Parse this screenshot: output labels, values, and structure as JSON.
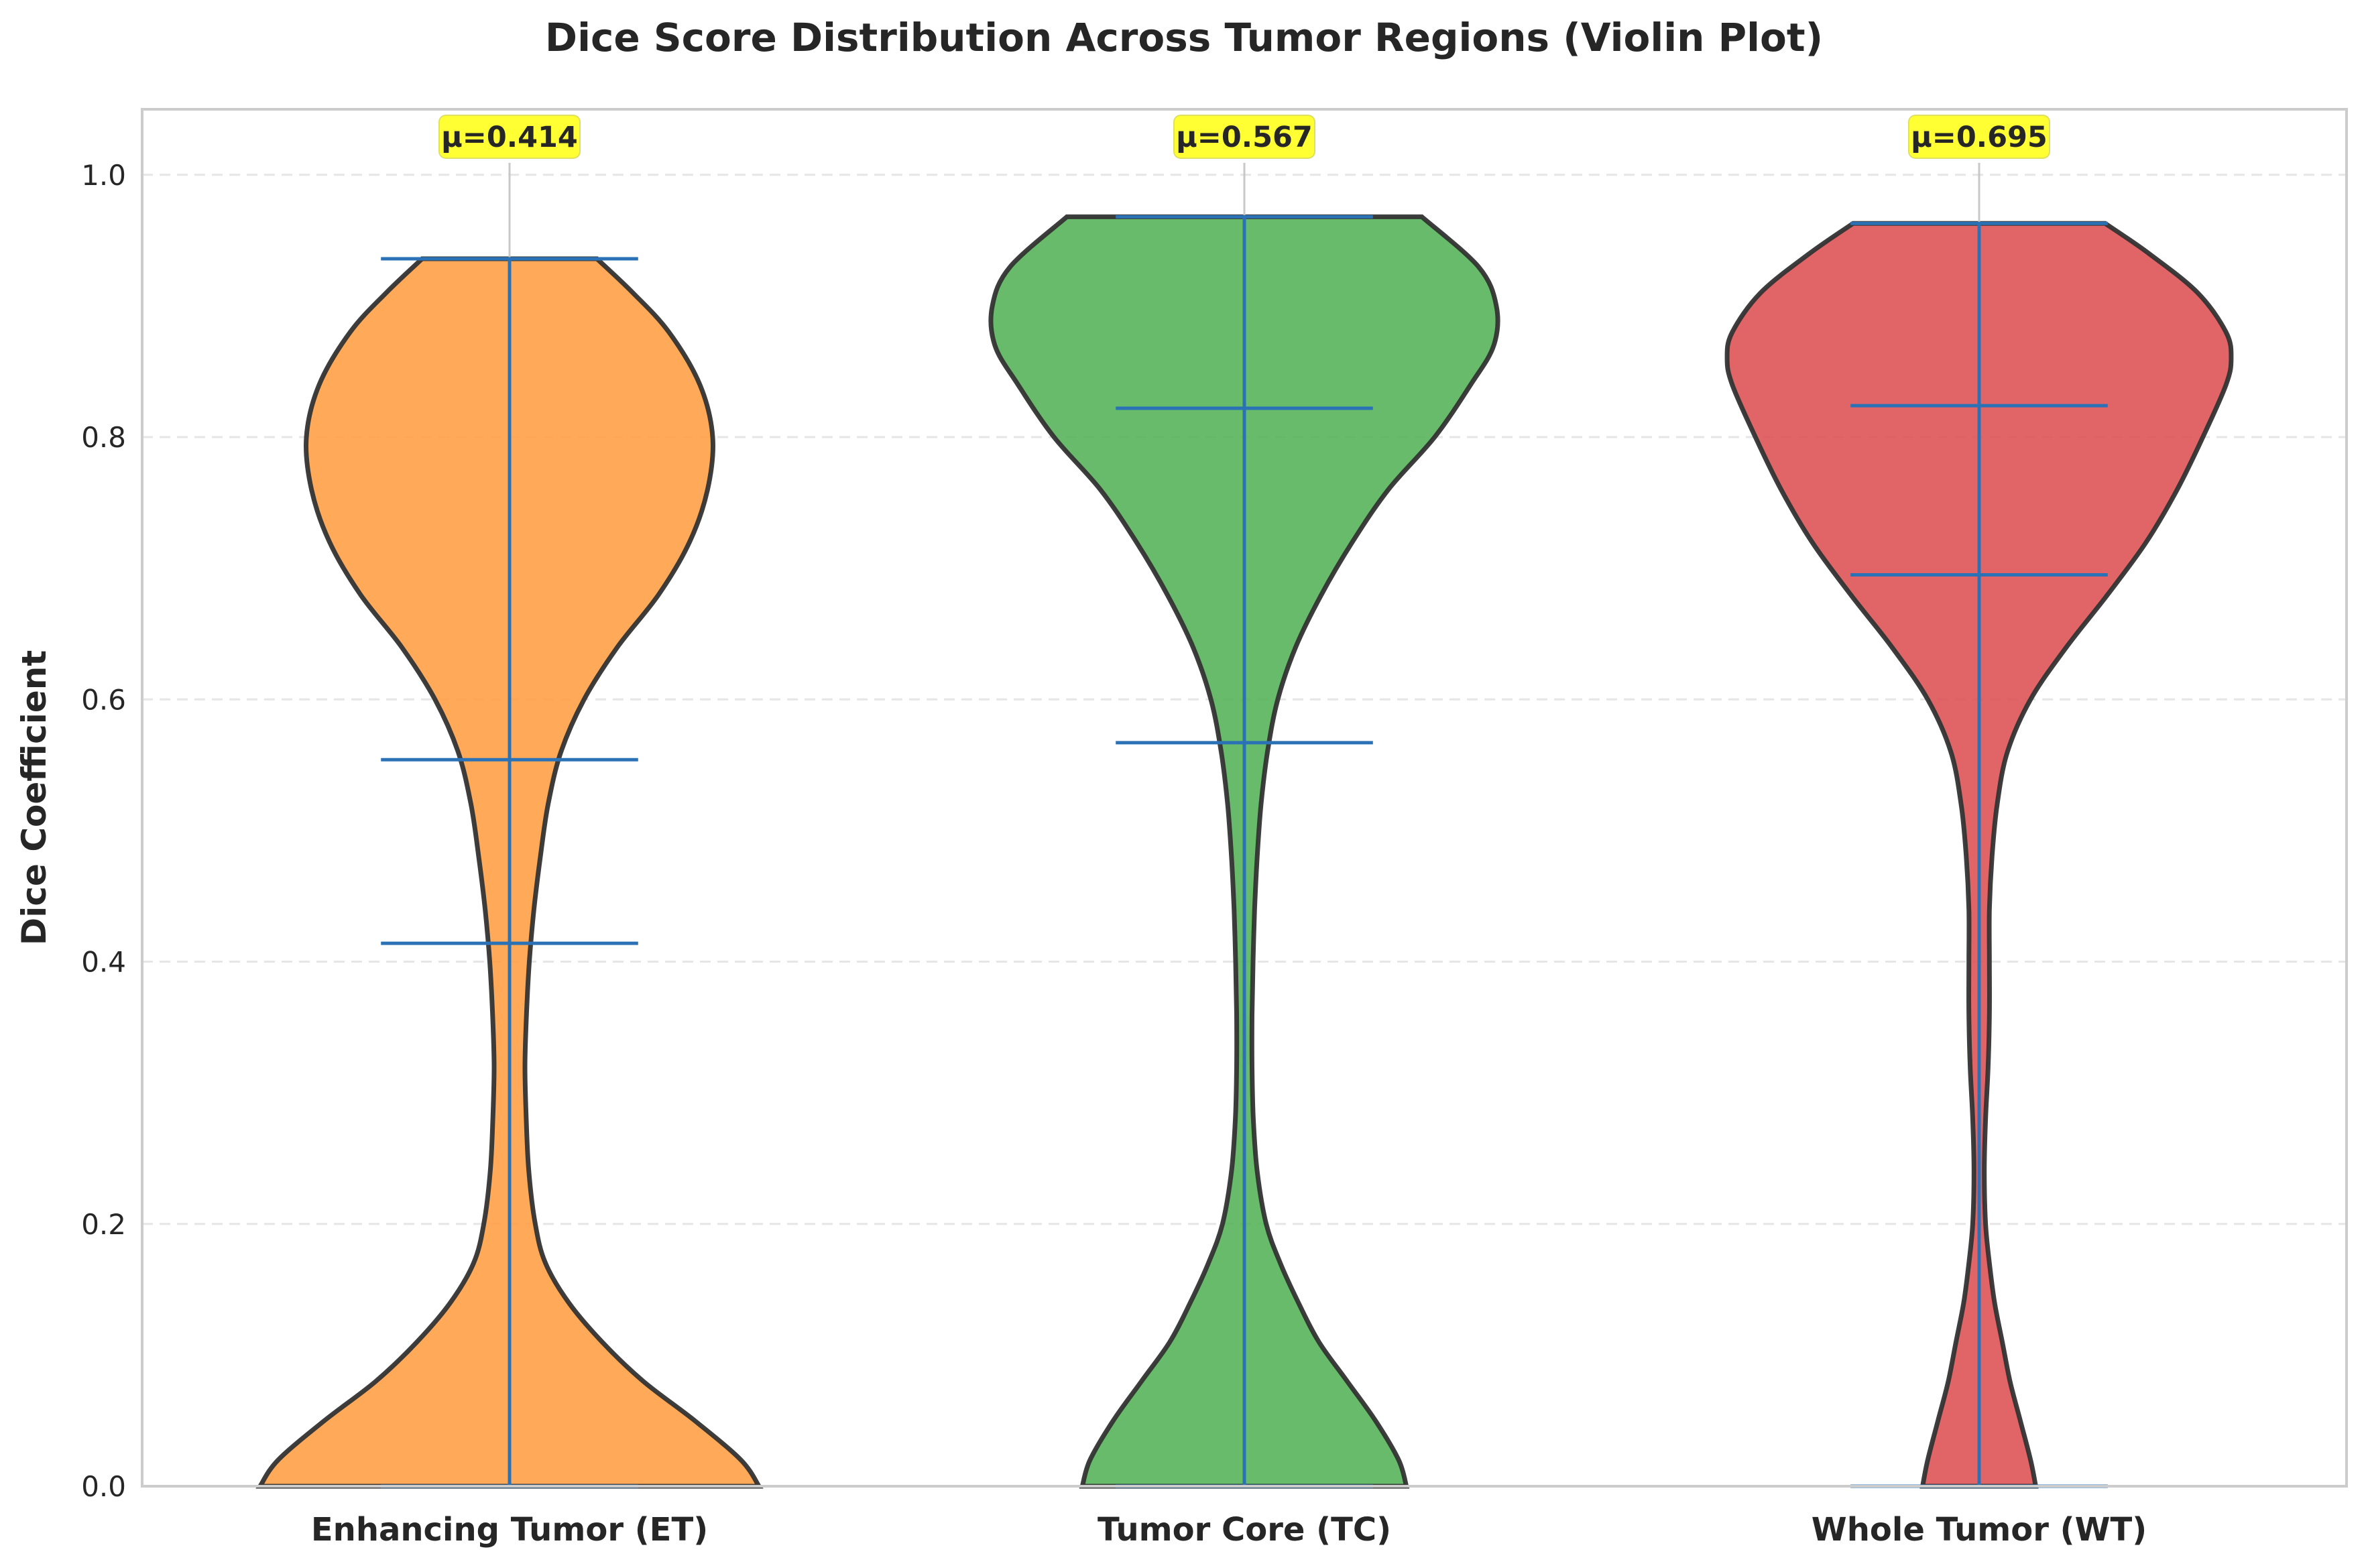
{
  "chart_data": {
    "type": "violin",
    "title": "Dice Score Distribution Across Tumor Regions (Violin Plot)",
    "xlabel": "",
    "ylabel": "Dice Coefficient",
    "ylim": [
      0.0,
      1.05
    ],
    "yticks": [
      "0.0",
      "0.2",
      "0.4",
      "0.6",
      "0.8",
      "1.0"
    ],
    "grid": "y-dashed",
    "categories": [
      "Enhancing Tumor (ET)",
      "Tumor Core (TC)",
      "Whole Tumor (WT)"
    ],
    "colors": [
      "#ff9a3c",
      "#4caf50",
      "#dc4a4c"
    ],
    "series": [
      {
        "category": "Enhancing Tumor (ET)",
        "min": 0.0,
        "max": 0.936,
        "mean": 0.414,
        "median": 0.554,
        "mean_label": "μ=0.414",
        "density_y": [
          0.0,
          0.02,
          0.05,
          0.08,
          0.11,
          0.14,
          0.17,
          0.2,
          0.24,
          0.28,
          0.32,
          0.36,
          0.4,
          0.44,
          0.48,
          0.52,
          0.56,
          0.6,
          0.64,
          0.68,
          0.72,
          0.76,
          0.8,
          0.84,
          0.88,
          0.91,
          0.936
        ],
        "density_w": [
          0.97,
          0.9,
          0.72,
          0.52,
          0.36,
          0.23,
          0.14,
          0.1,
          0.075,
          0.065,
          0.06,
          0.066,
          0.077,
          0.095,
          0.12,
          0.15,
          0.2,
          0.29,
          0.42,
          0.58,
          0.7,
          0.77,
          0.79,
          0.74,
          0.62,
          0.48,
          0.34
        ]
      },
      {
        "category": "Tumor Core (TC)",
        "min": 0.0,
        "max": 0.968,
        "mean": 0.567,
        "median": 0.822,
        "mean_label": "μ=0.567",
        "density_y": [
          0.0,
          0.02,
          0.05,
          0.08,
          0.11,
          0.14,
          0.17,
          0.2,
          0.24,
          0.28,
          0.32,
          0.36,
          0.4,
          0.44,
          0.48,
          0.52,
          0.56,
          0.6,
          0.64,
          0.68,
          0.72,
          0.76,
          0.8,
          0.84,
          0.87,
          0.9,
          0.93,
          0.968
        ],
        "density_w": [
          0.63,
          0.6,
          0.51,
          0.4,
          0.29,
          0.21,
          0.14,
          0.085,
          0.05,
          0.035,
          0.03,
          0.03,
          0.034,
          0.04,
          0.05,
          0.065,
          0.09,
          0.13,
          0.2,
          0.3,
          0.42,
          0.56,
          0.74,
          0.88,
          0.97,
          0.98,
          0.91,
          0.69
        ]
      },
      {
        "category": "Whole Tumor (WT)",
        "min": 0.0,
        "max": 0.963,
        "mean": 0.695,
        "median": 0.824,
        "mean_label": "μ=0.695",
        "density_y": [
          0.0,
          0.02,
          0.05,
          0.08,
          0.11,
          0.14,
          0.17,
          0.2,
          0.24,
          0.28,
          0.32,
          0.36,
          0.4,
          0.44,
          0.48,
          0.52,
          0.56,
          0.6,
          0.64,
          0.68,
          0.72,
          0.76,
          0.8,
          0.84,
          0.86,
          0.88,
          0.91,
          0.94,
          0.963
        ],
        "density_w": [
          0.22,
          0.2,
          0.16,
          0.12,
          0.09,
          0.06,
          0.04,
          0.025,
          0.02,
          0.025,
          0.035,
          0.04,
          0.04,
          0.04,
          0.05,
          0.07,
          0.11,
          0.2,
          0.34,
          0.5,
          0.65,
          0.77,
          0.87,
          0.96,
          0.98,
          0.96,
          0.85,
          0.66,
          0.49
        ]
      }
    ]
  }
}
